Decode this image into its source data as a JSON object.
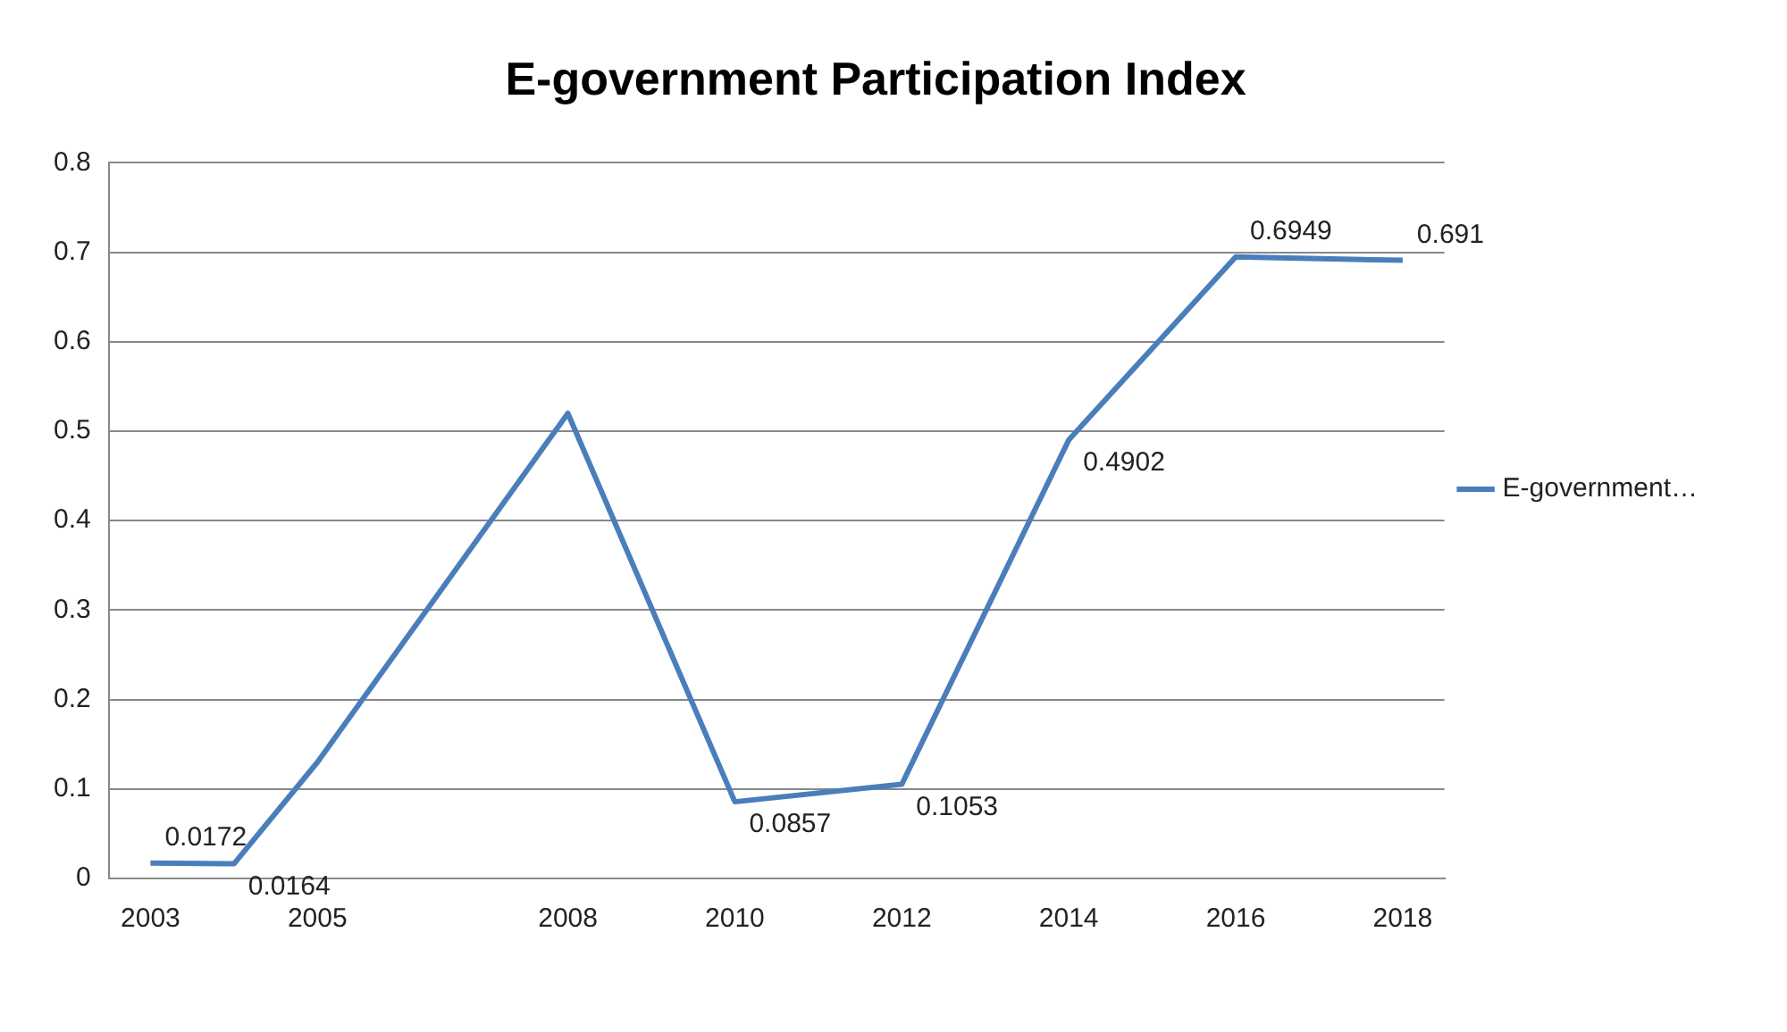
{
  "chart_data": {
    "type": "line",
    "title": "E-government Participation Index",
    "categories": [
      "2003",
      null,
      "2005",
      null,
      null,
      "2008",
      null,
      "2010",
      null,
      "2012",
      null,
      "2014",
      null,
      "2016",
      null,
      "2018"
    ],
    "series": [
      {
        "name": "E-government…",
        "color": "#4a7ebb",
        "values": [
          0.0172,
          0.0164,
          0.13,
          null,
          null,
          0.52,
          null,
          0.0857,
          null,
          0.1053,
          null,
          0.4902,
          null,
          0.6949,
          null,
          0.691
        ],
        "value_labels": [
          "0.0172",
          "0.0164",
          null,
          null,
          null,
          null,
          null,
          "0.0857",
          null,
          "0.1053",
          null,
          "0.4902",
          null,
          "0.6949",
          null,
          "0.691"
        ]
      }
    ],
    "ylim": [
      0,
      0.8
    ],
    "yticks": [
      0,
      0.1,
      0.2,
      0.3,
      0.4,
      0.5,
      0.6,
      0.7,
      0.8
    ],
    "grid": "y",
    "legend": "right",
    "marker": "none",
    "line_style": "solid"
  }
}
